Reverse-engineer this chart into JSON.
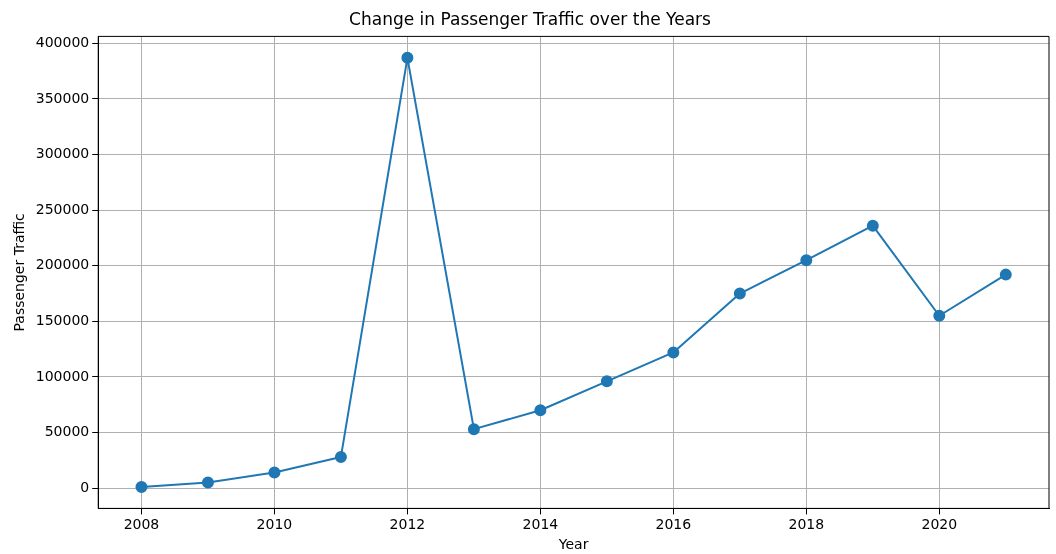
{
  "chart_data": {
    "type": "line",
    "title": "Change in Passenger Traffic over the Years",
    "xlabel": "Year",
    "ylabel": "Passenger Traffic",
    "x": [
      2008,
      2009,
      2010,
      2011,
      2012,
      2013,
      2014,
      2015,
      2016,
      2017,
      2018,
      2019,
      2020,
      2021
    ],
    "series": [
      {
        "color": "#1f77b4",
        "values": [
          1000,
          5000,
          14000,
          28000,
          387000,
          53000,
          70000,
          96000,
          122000,
          175000,
          205000,
          236000,
          155000,
          192000
        ]
      }
    ],
    "xlim": [
      2007.35,
      2021.65
    ],
    "xticks": [
      2008,
      2010,
      2012,
      2014,
      2016,
      2018,
      2020
    ],
    "ylim": [
      -18300,
      406300
    ],
    "yticks": [
      0,
      50000,
      100000,
      150000,
      200000,
      250000,
      300000,
      350000,
      400000
    ],
    "grid": true,
    "marker": "circle",
    "line_style": "solid"
  }
}
